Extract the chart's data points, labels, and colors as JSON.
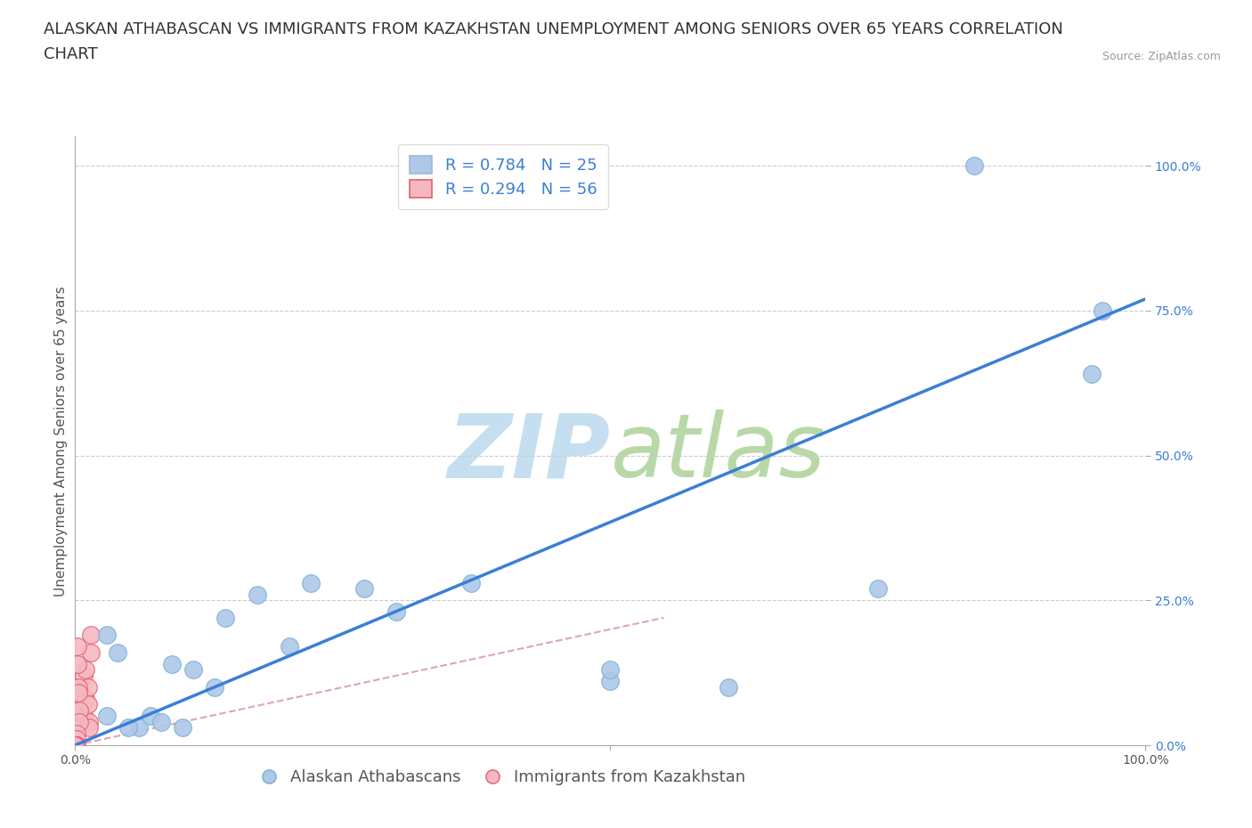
{
  "title_line1": "ALASKAN ATHABASCAN VS IMMIGRANTS FROM KAZAKHSTAN UNEMPLOYMENT AMONG SENIORS OVER 65 YEARS CORRELATION",
  "title_line2": "CHART",
  "source_text": "Source: ZipAtlas.com",
  "ylabel": "Unemployment Among Seniors over 65 years",
  "xmin": 0.0,
  "xmax": 1.0,
  "ymin": 0.0,
  "ymax": 1.05,
  "right_yticks": [
    0.0,
    0.25,
    0.5,
    0.75,
    1.0
  ],
  "right_yticklabels": [
    "0.0%",
    "25.0%",
    "50.0%",
    "75.0%",
    "100.0%"
  ],
  "gridline_color": "#cccccc",
  "background_color": "#ffffff",
  "watermark_zip": "ZIP",
  "watermark_atlas": "atlas",
  "watermark_color_zip": "#c5dff0",
  "watermark_color_atlas": "#b8d8a8",
  "legend_r1": "R = 0.784   N = 25",
  "legend_r2": "R = 0.294   N = 56",
  "legend_color1": "#adc8e8",
  "legend_color2": "#f5b8c0",
  "blue_dot_color": "#adc8e8",
  "pink_dot_color": "#f5b8c0",
  "pink_dot_edge_color": "#e06070",
  "blue_dot_edge_color": "#7aaed4",
  "blue_line_color": "#3a7fd5",
  "pink_line_color": "#d08090",
  "blue_scatter_x": [
    0.03,
    0.04,
    0.06,
    0.07,
    0.09,
    0.1,
    0.11,
    0.13,
    0.14,
    0.17,
    0.2,
    0.22,
    0.27,
    0.3,
    0.37,
    0.5,
    0.5,
    0.61,
    0.75,
    0.84,
    0.95,
    0.96,
    0.03,
    0.05,
    0.08
  ],
  "blue_scatter_y": [
    0.19,
    0.16,
    0.03,
    0.05,
    0.14,
    0.03,
    0.13,
    0.1,
    0.22,
    0.26,
    0.17,
    0.28,
    0.27,
    0.23,
    0.28,
    0.11,
    0.13,
    0.1,
    0.27,
    1.0,
    0.64,
    0.75,
    0.05,
    0.03,
    0.04
  ],
  "pink_scatter_x": [
    0.005,
    0.005,
    0.008,
    0.008,
    0.01,
    0.01,
    0.012,
    0.012,
    0.013,
    0.013,
    0.015,
    0.015,
    0.002,
    0.002,
    0.003,
    0.003,
    0.004,
    0.004,
    0.001,
    0.001,
    0.001,
    0.001,
    0.0,
    0.0,
    0.0,
    0.0,
    0.0,
    0.0,
    0.0,
    0.0,
    0.0,
    0.0,
    0.0,
    0.0,
    0.0,
    0.0,
    0.0,
    0.0,
    0.0,
    0.0,
    0.0,
    0.0,
    0.0,
    0.0,
    0.0,
    0.0,
    0.0,
    0.0,
    0.0,
    0.0,
    0.0,
    0.0,
    0.0,
    0.0,
    0.0,
    0.0
  ],
  "pink_scatter_y": [
    0.06,
    0.09,
    0.05,
    0.12,
    0.13,
    0.08,
    0.1,
    0.07,
    0.04,
    0.03,
    0.16,
    0.19,
    0.14,
    0.17,
    0.1,
    0.09,
    0.06,
    0.04,
    0.02,
    0.01,
    0.0,
    0.0,
    0.0,
    0.0,
    0.0,
    0.0,
    0.0,
    0.0,
    0.0,
    0.0,
    0.0,
    0.0,
    0.0,
    0.0,
    0.0,
    0.0,
    0.0,
    0.0,
    0.0,
    0.0,
    0.0,
    0.0,
    0.0,
    0.0,
    0.0,
    0.0,
    0.0,
    0.0,
    0.0,
    0.0,
    0.0,
    0.0,
    0.0,
    0.0,
    0.0,
    0.0
  ],
  "blue_line_x0": 0.0,
  "blue_line_y0": 0.0,
  "blue_line_x1": 1.0,
  "blue_line_y1": 0.77,
  "pink_line_x0": 0.0,
  "pink_line_y0": 0.0,
  "pink_line_x1": 0.55,
  "pink_line_y1": 0.22,
  "dot_size": 200,
  "title_fontsize": 13,
  "axis_label_fontsize": 11,
  "tick_fontsize": 10,
  "legend_fontsize": 13
}
